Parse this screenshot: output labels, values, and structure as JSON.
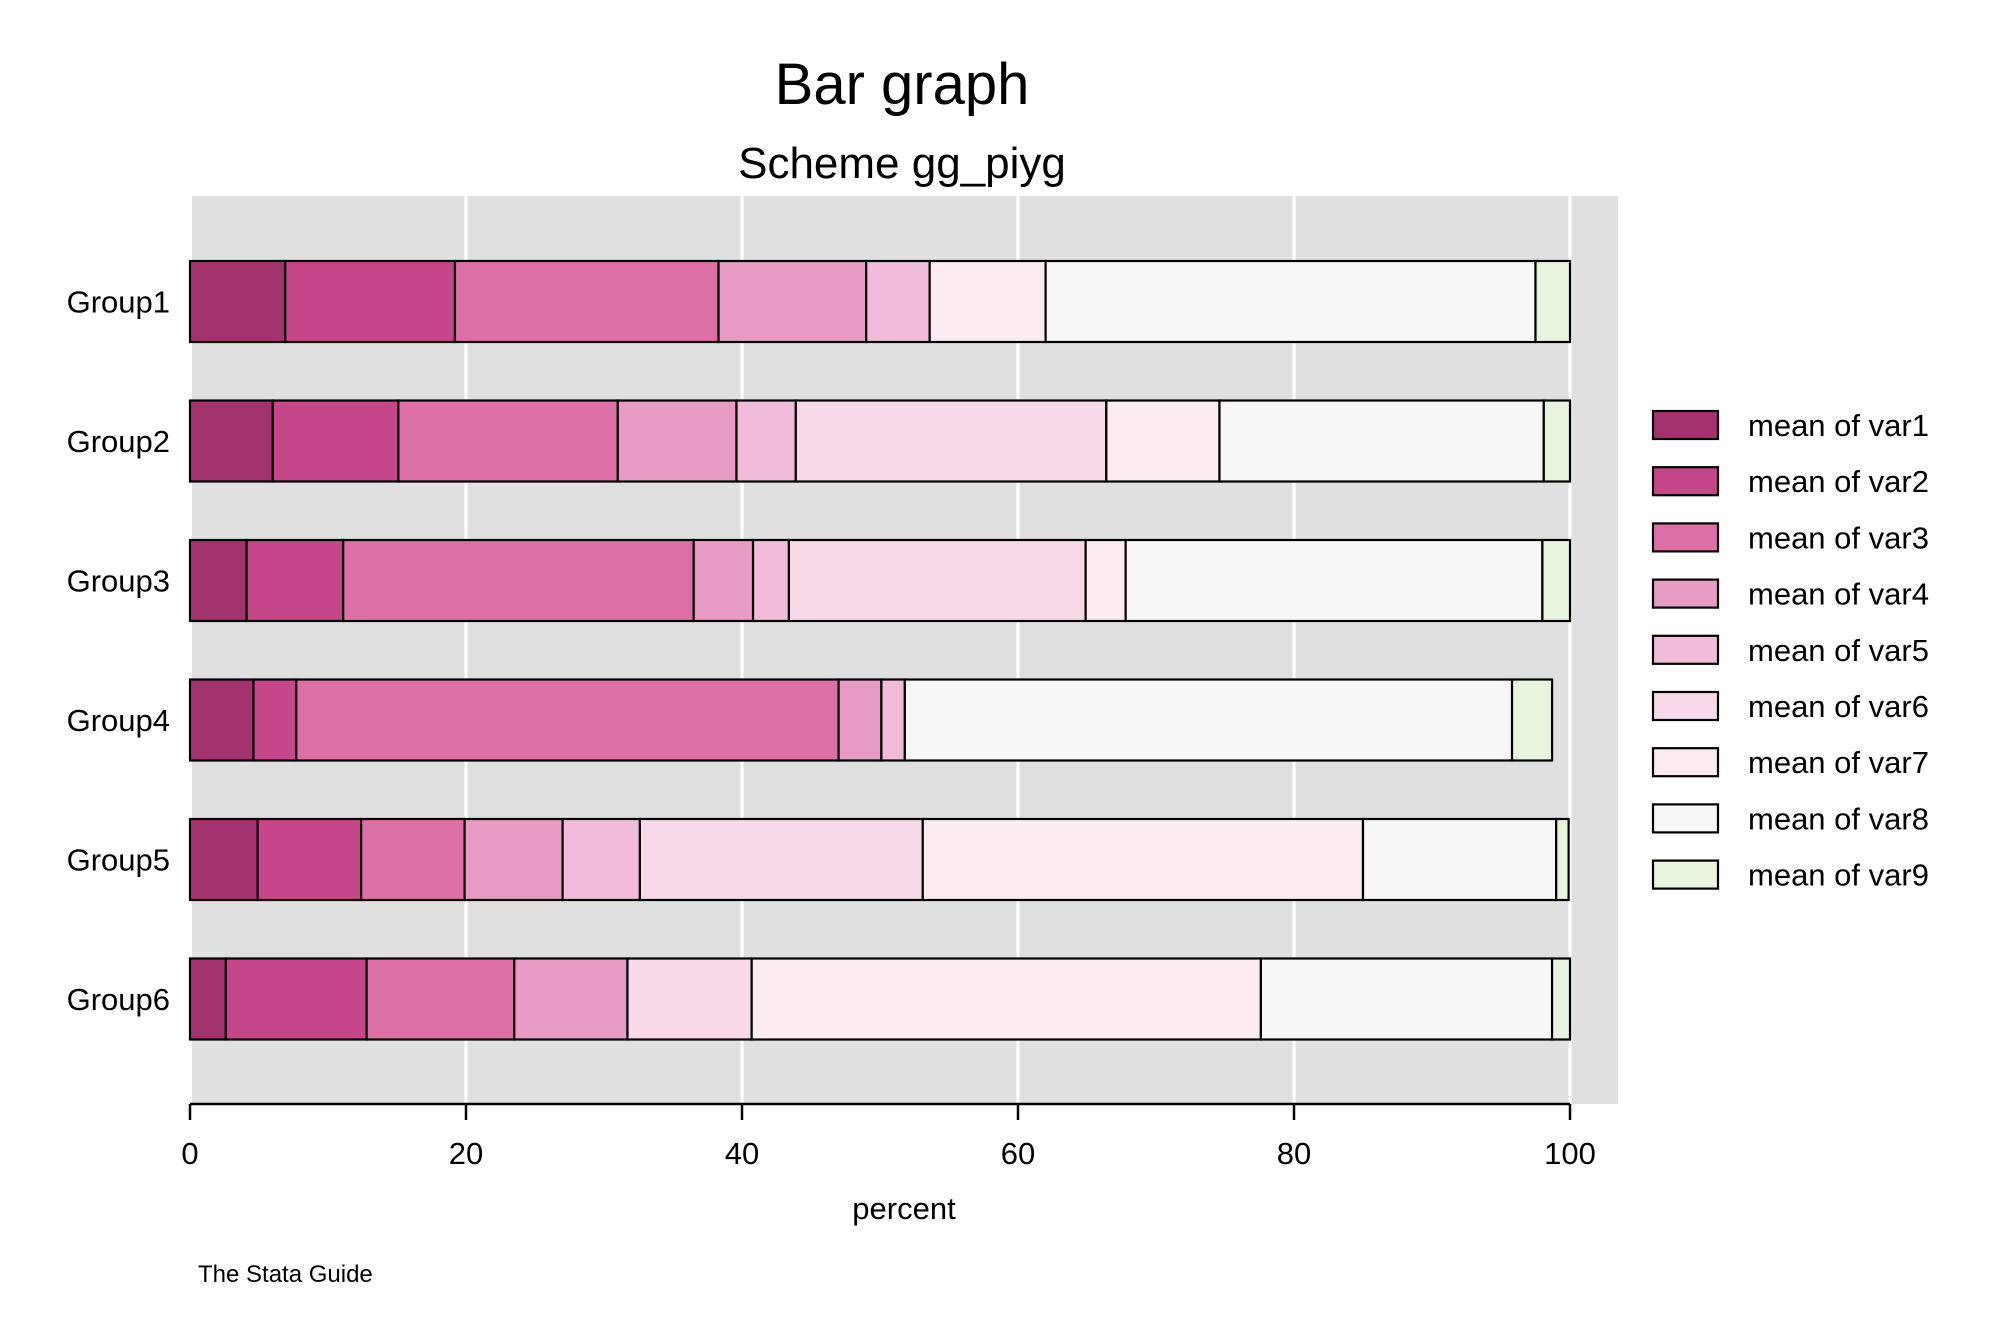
{
  "chart_data": {
    "type": "bar",
    "orientation": "horizontal",
    "stacked": true,
    "title": "Bar graph",
    "subtitle": "Scheme gg_piyg",
    "xlabel": "percent",
    "xlim": [
      0,
      100
    ],
    "xticks": [
      "0",
      "20",
      "40",
      "60",
      "80",
      "100"
    ],
    "grid": true,
    "legend_position": "right",
    "note": "The Stata Guide",
    "categories": [
      "Group1",
      "Group2",
      "Group3",
      "Group4",
      "Group5",
      "Group6"
    ],
    "series": [
      {
        "name": "mean of var1",
        "color": "#A3336F",
        "values": [
          6.9,
          6.0,
          4.1,
          4.6,
          4.9,
          2.6
        ]
      },
      {
        "name": "mean of var2",
        "color": "#C6468A",
        "values": [
          12.3,
          9.1,
          7.0,
          3.1,
          7.5,
          10.2
        ]
      },
      {
        "name": "mean of var3",
        "color": "#DB6FA6",
        "values": [
          19.1,
          15.9,
          25.4,
          39.3,
          7.5,
          10.7
        ]
      },
      {
        "name": "mean of var4",
        "color": "#E89BC4",
        "values": [
          10.7,
          8.6,
          4.3,
          3.1,
          7.1,
          8.2
        ]
      },
      {
        "name": "mean of var5",
        "color": "#F0BCDA",
        "values": [
          4.6,
          4.3,
          2.6,
          1.7,
          5.6,
          0.0
        ]
      },
      {
        "name": "mean of var6",
        "color": "#F8D9E9",
        "values": [
          0.0,
          22.5,
          21.5,
          0.0,
          20.5,
          9.0
        ]
      },
      {
        "name": "mean of var7",
        "color": "#FCEBF3",
        "values": [
          8.4,
          8.2,
          2.9,
          0.0,
          31.9,
          36.9
        ]
      },
      {
        "name": "mean of var8",
        "color": "#F7F7F7",
        "values": [
          35.5,
          23.5,
          30.2,
          44.0,
          14.0,
          21.1
        ]
      },
      {
        "name": "mean of var9",
        "color": "#E9F4DE",
        "values": [
          2.5,
          1.9,
          2.0,
          2.9,
          0.9,
          1.3
        ]
      }
    ]
  }
}
